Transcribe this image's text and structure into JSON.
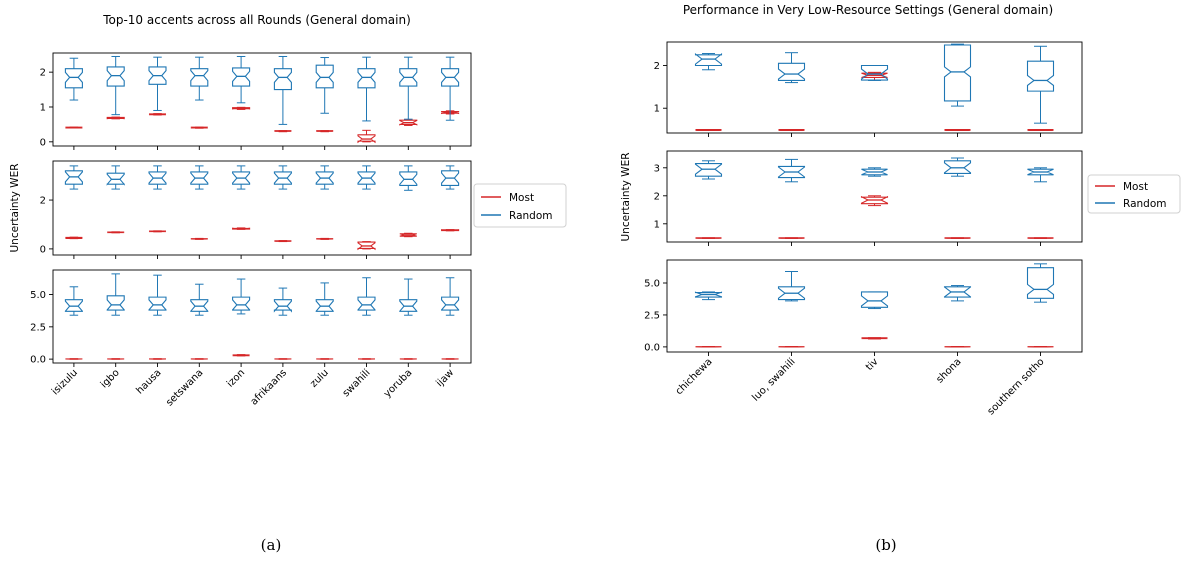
{
  "colors": {
    "most": "#d62728",
    "random": "#1f77b4"
  },
  "figure_a": {
    "caption": "(a)",
    "chart_data": {
      "type": "box",
      "title": "Top-10 accents across all Rounds (General domain)",
      "ylabel": "Uncertainty WER",
      "categories": [
        "isizulu",
        "igbo",
        "hausa",
        "setswana",
        "izon",
        "afrikaans",
        "zulu",
        "swahili",
        "yoruba",
        "ijaw"
      ],
      "legend": {
        "entries": [
          "Most",
          "Random"
        ],
        "placement": "right-outside"
      },
      "panels": [
        {
          "ylim": [
            -0.12,
            2.55
          ],
          "yticks": [
            0,
            1,
            2
          ],
          "ytick_labels": [
            "0",
            "1",
            "2"
          ],
          "series": [
            {
              "name": "Most",
              "boxes": [
                [
                  0.4,
                  0.4,
                  0.41,
                  0.42,
                  0.42
                ],
                [
                  0.66,
                  0.67,
                  0.68,
                  0.7,
                  0.71
                ],
                [
                  0.77,
                  0.78,
                  0.79,
                  0.8,
                  0.81
                ],
                [
                  0.39,
                  0.4,
                  0.41,
                  0.42,
                  0.42
                ],
                [
                  0.93,
                  0.95,
                  0.96,
                  0.98,
                  0.99
                ],
                [
                  0.29,
                  0.3,
                  0.31,
                  0.32,
                  0.32
                ],
                [
                  0.29,
                  0.3,
                  0.31,
                  0.32,
                  0.32
                ],
                [
                  0.0,
                  0.02,
                  0.08,
                  0.2,
                  0.33
                ],
                [
                  0.47,
                  0.5,
                  0.55,
                  0.62,
                  0.64
                ],
                [
                  0.8,
                  0.82,
                  0.84,
                  0.87,
                  0.89
                ]
              ]
            },
            {
              "name": "Random",
              "boxes": [
                [
                  1.2,
                  1.55,
                  1.85,
                  2.1,
                  2.4
                ],
                [
                  0.78,
                  1.6,
                  1.9,
                  2.15,
                  2.45
                ],
                [
                  0.9,
                  1.65,
                  1.9,
                  2.15,
                  2.43
                ],
                [
                  1.2,
                  1.6,
                  1.9,
                  2.1,
                  2.43
                ],
                [
                  1.12,
                  1.6,
                  1.88,
                  2.12,
                  2.45
                ],
                [
                  0.5,
                  1.5,
                  1.85,
                  2.1,
                  2.45
                ],
                [
                  0.82,
                  1.55,
                  1.85,
                  2.2,
                  2.42
                ],
                [
                  0.6,
                  1.55,
                  1.85,
                  2.1,
                  2.43
                ],
                [
                  0.65,
                  1.6,
                  1.85,
                  2.1,
                  2.43
                ],
                [
                  0.62,
                  1.6,
                  1.85,
                  2.1,
                  2.43
                ]
              ]
            }
          ]
        },
        {
          "ylim": [
            -0.25,
            3.6
          ],
          "yticks": [
            0,
            2
          ],
          "ytick_labels": [
            "0",
            "2"
          ],
          "series": [
            {
              "name": "Most",
              "boxes": [
                [
                  0.42,
                  0.43,
                  0.45,
                  0.47,
                  0.48
                ],
                [
                  0.66,
                  0.67,
                  0.68,
                  0.69,
                  0.7
                ],
                [
                  0.7,
                  0.71,
                  0.72,
                  0.73,
                  0.74
                ],
                [
                  0.39,
                  0.4,
                  0.41,
                  0.42,
                  0.43
                ],
                [
                  0.8,
                  0.81,
                  0.83,
                  0.84,
                  0.86
                ],
                [
                  0.3,
                  0.31,
                  0.32,
                  0.33,
                  0.34
                ],
                [
                  0.39,
                  0.4,
                  0.41,
                  0.42,
                  0.43
                ],
                [
                  0.0,
                  0.02,
                  0.12,
                  0.28,
                  0.3
                ],
                [
                  0.5,
                  0.52,
                  0.57,
                  0.62,
                  0.64
                ],
                [
                  0.74,
                  0.75,
                  0.77,
                  0.78,
                  0.79
                ]
              ]
            },
            {
              "name": "Random",
              "boxes": [
                [
                  2.45,
                  2.65,
                  2.95,
                  3.2,
                  3.4
                ],
                [
                  2.45,
                  2.65,
                  2.85,
                  3.1,
                  3.4
                ],
                [
                  2.45,
                  2.65,
                  2.9,
                  3.15,
                  3.4
                ],
                [
                  2.45,
                  2.65,
                  2.9,
                  3.15,
                  3.4
                ],
                [
                  2.45,
                  2.65,
                  2.9,
                  3.15,
                  3.4
                ],
                [
                  2.45,
                  2.65,
                  2.9,
                  3.15,
                  3.4
                ],
                [
                  2.45,
                  2.65,
                  2.9,
                  3.15,
                  3.4
                ],
                [
                  2.45,
                  2.65,
                  2.9,
                  3.15,
                  3.4
                ],
                [
                  2.4,
                  2.6,
                  2.85,
                  3.15,
                  3.4
                ],
                [
                  2.45,
                  2.6,
                  2.9,
                  3.2,
                  3.4
                ]
              ]
            }
          ]
        },
        {
          "ylim": [
            -0.3,
            6.9
          ],
          "yticks": [
            0,
            2.5,
            5
          ],
          "ytick_labels": [
            "0.0",
            "2.5",
            "5.0"
          ],
          "series": [
            {
              "name": "Most",
              "boxes": [
                [
                  0.0,
                  0.0,
                  0.01,
                  0.02,
                  0.03
                ],
                [
                  0.0,
                  0.0,
                  0.01,
                  0.02,
                  0.03
                ],
                [
                  0.0,
                  0.0,
                  0.01,
                  0.02,
                  0.03
                ],
                [
                  0.0,
                  0.0,
                  0.01,
                  0.02,
                  0.03
                ],
                [
                  0.25,
                  0.27,
                  0.3,
                  0.33,
                  0.35
                ],
                [
                  0.0,
                  0.0,
                  0.01,
                  0.02,
                  0.03
                ],
                [
                  0.0,
                  0.0,
                  0.01,
                  0.02,
                  0.03
                ],
                [
                  0.0,
                  0.0,
                  0.01,
                  0.02,
                  0.03
                ],
                [
                  0.0,
                  0.0,
                  0.01,
                  0.02,
                  0.03
                ],
                [
                  0.0,
                  0.0,
                  0.01,
                  0.02,
                  0.03
                ]
              ]
            },
            {
              "name": "Random",
              "boxes": [
                [
                  3.4,
                  3.7,
                  4.1,
                  4.6,
                  5.6
                ],
                [
                  3.4,
                  3.8,
                  4.2,
                  4.9,
                  6.6
                ],
                [
                  3.4,
                  3.8,
                  4.2,
                  4.8,
                  6.5
                ],
                [
                  3.4,
                  3.7,
                  4.1,
                  4.6,
                  5.8
                ],
                [
                  3.5,
                  3.8,
                  4.2,
                  4.8,
                  6.2
                ],
                [
                  3.4,
                  3.8,
                  4.1,
                  4.6,
                  5.5
                ],
                [
                  3.4,
                  3.7,
                  4.1,
                  4.6,
                  5.9
                ],
                [
                  3.4,
                  3.8,
                  4.2,
                  4.8,
                  6.3
                ],
                [
                  3.4,
                  3.7,
                  4.1,
                  4.6,
                  6.2
                ],
                [
                  3.4,
                  3.8,
                  4.2,
                  4.8,
                  6.3
                ]
              ]
            }
          ]
        }
      ]
    }
  },
  "figure_b": {
    "caption": "(b)",
    "chart_data": {
      "type": "box",
      "title": "Performance in Very Low-Resource Settings (General domain)",
      "ylabel": "Uncertainty WER",
      "categories": [
        "chichewa",
        "luo, swahili",
        "tiv",
        "shona",
        "southern sotho"
      ],
      "legend": {
        "entries": [
          "Most",
          "Random"
        ],
        "placement": "right-outside"
      },
      "panels": [
        {
          "ylim": [
            0.42,
            2.55
          ],
          "yticks": [
            1,
            2
          ],
          "ytick_labels": [
            "1",
            "2"
          ],
          "series": [
            {
              "name": "Most",
              "boxes": [
                [
                  0.48,
                  0.48,
                  0.49,
                  0.5,
                  0.5
                ],
                [
                  0.48,
                  0.48,
                  0.49,
                  0.5,
                  0.5
                ],
                [
                  1.66,
                  1.72,
                  1.77,
                  1.82,
                  1.84
                ],
                [
                  0.48,
                  0.48,
                  0.49,
                  0.5,
                  0.5
                ],
                [
                  0.48,
                  0.48,
                  0.49,
                  0.5,
                  0.5
                ]
              ]
            },
            {
              "name": "Random",
              "boxes": [
                [
                  1.9,
                  2.0,
                  2.15,
                  2.25,
                  2.28
                ],
                [
                  1.6,
                  1.65,
                  1.8,
                  2.05,
                  2.3
                ],
                [
                  1.65,
                  1.66,
                  1.8,
                  2.0,
                  2.0
                ],
                [
                  1.05,
                  1.17,
                  1.85,
                  2.48,
                  2.5
                ],
                [
                  0.65,
                  1.4,
                  1.65,
                  2.1,
                  2.45
                ]
              ]
            }
          ]
        },
        {
          "ylim": [
            0.35,
            3.6
          ],
          "yticks": [
            1,
            2,
            3
          ],
          "ytick_labels": [
            "1",
            "2",
            "3"
          ],
          "series": [
            {
              "name": "Most",
              "boxes": [
                [
                  0.48,
                  0.48,
                  0.49,
                  0.5,
                  0.5
                ],
                [
                  0.48,
                  0.48,
                  0.49,
                  0.5,
                  0.5
                ],
                [
                  1.65,
                  1.72,
                  1.85,
                  1.95,
                  2.0
                ],
                [
                  0.48,
                  0.48,
                  0.49,
                  0.5,
                  0.5
                ],
                [
                  0.48,
                  0.48,
                  0.49,
                  0.5,
                  0.5
                ]
              ]
            },
            {
              "name": "Random",
              "boxes": [
                [
                  2.6,
                  2.7,
                  2.95,
                  3.15,
                  3.25
                ],
                [
                  2.5,
                  2.65,
                  2.85,
                  3.05,
                  3.3
                ],
                [
                  2.7,
                  2.75,
                  2.85,
                  2.95,
                  3.0
                ],
                [
                  2.7,
                  2.8,
                  3.0,
                  3.25,
                  3.35
                ],
                [
                  2.5,
                  2.75,
                  2.85,
                  2.95,
                  3.0
                ]
              ]
            }
          ]
        },
        {
          "ylim": [
            -0.4,
            6.8
          ],
          "yticks": [
            0,
            2.5,
            5
          ],
          "ytick_labels": [
            "0.0",
            "2.5",
            "5.0"
          ],
          "series": [
            {
              "name": "Most",
              "boxes": [
                [
                  0.0,
                  0.0,
                  0.01,
                  0.02,
                  0.03
                ],
                [
                  0.0,
                  0.0,
                  0.01,
                  0.02,
                  0.03
                ],
                [
                  0.62,
                  0.65,
                  0.68,
                  0.71,
                  0.72
                ],
                [
                  0.0,
                  0.0,
                  0.01,
                  0.02,
                  0.03
                ],
                [
                  0.0,
                  0.0,
                  0.01,
                  0.02,
                  0.03
                ]
              ]
            },
            {
              "name": "Random",
              "boxes": [
                [
                  3.7,
                  3.9,
                  4.1,
                  4.25,
                  4.3
                ],
                [
                  3.6,
                  3.7,
                  4.2,
                  4.7,
                  5.9
                ],
                [
                  3.0,
                  3.1,
                  3.6,
                  4.3,
                  4.3
                ],
                [
                  3.6,
                  3.9,
                  4.3,
                  4.7,
                  4.8
                ],
                [
                  3.5,
                  3.8,
                  4.5,
                  6.2,
                  6.5
                ]
              ]
            }
          ]
        }
      ]
    }
  }
}
